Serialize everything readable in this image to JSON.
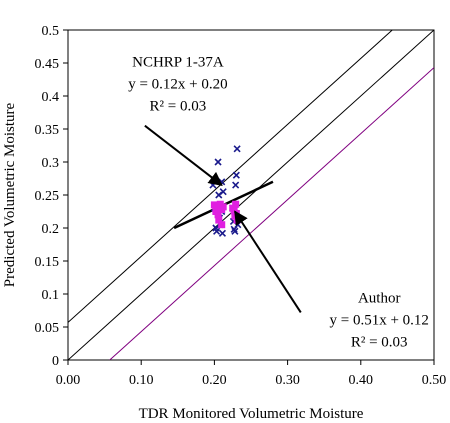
{
  "chart_data": {
    "type": "scatter",
    "title": "",
    "xlabel": "TDR Monitored Volumetric Moisture",
    "ylabel": "Predicted Volumetric Moisture",
    "xlim": [
      0,
      0.5
    ],
    "ylim": [
      0,
      0.5
    ],
    "x_ticks": [
      "0.00",
      "0.10",
      "0.20",
      "0.30",
      "0.40",
      "0.50"
    ],
    "y_ticks": [
      "0",
      "0.05",
      "0.1",
      "0.15",
      "0.2",
      "0.25",
      "0.3",
      "0.35",
      "0.4",
      "0.45",
      "0.5"
    ],
    "grid": false,
    "legend": "none",
    "series": [
      {
        "marker": "x",
        "color": "#1a1a8c",
        "points": [
          [
            0.198,
            0.265
          ],
          [
            0.2,
            0.23
          ],
          [
            0.202,
            0.2
          ],
          [
            0.203,
            0.195
          ],
          [
            0.205,
            0.3
          ],
          [
            0.206,
            0.25
          ],
          [
            0.207,
            0.215
          ],
          [
            0.208,
            0.205
          ],
          [
            0.21,
            0.27
          ],
          [
            0.21,
            0.225
          ],
          [
            0.211,
            0.192
          ],
          [
            0.212,
            0.255
          ],
          [
            0.225,
            0.23
          ],
          [
            0.226,
            0.21
          ],
          [
            0.227,
            0.198
          ],
          [
            0.228,
            0.195
          ],
          [
            0.229,
            0.265
          ],
          [
            0.23,
            0.28
          ],
          [
            0.231,
            0.32
          ],
          [
            0.232,
            0.205
          ]
        ]
      },
      {
        "marker": "square",
        "color": "#e020e0",
        "points": [
          [
            0.2,
            0.235
          ],
          [
            0.202,
            0.225
          ],
          [
            0.204,
            0.232
          ],
          [
            0.205,
            0.22
          ],
          [
            0.206,
            0.212
          ],
          [
            0.208,
            0.236
          ],
          [
            0.21,
            0.228
          ],
          [
            0.21,
            0.205
          ],
          [
            0.212,
            0.232
          ],
          [
            0.225,
            0.23
          ],
          [
            0.227,
            0.226
          ],
          [
            0.228,
            0.218
          ],
          [
            0.229,
            0.236
          ],
          [
            0.23,
            0.222
          ],
          [
            0.231,
            0.212
          ]
        ]
      }
    ],
    "reference_lines": [
      {
        "x1": 0,
        "y1": 0,
        "x2": 0.5,
        "y2": 0.5,
        "color": "#000000"
      },
      {
        "x1": 0,
        "y1": 0.057,
        "x2": 0.443,
        "y2": 0.5,
        "color": "#000000"
      },
      {
        "x1": 0.057,
        "y1": 0,
        "x2": 0.5,
        "y2": 0.443,
        "color": "#800080"
      }
    ],
    "trend_lines": [
      {
        "x1": 0.145,
        "y1": 0.2,
        "x2": 0.28,
        "y2": 0.27,
        "color": "#000000"
      }
    ],
    "annotations": [
      {
        "name": "nchrp",
        "lines": [
          "NCHRP 1-37A",
          "y = 0.12x + 0.20",
          "R² = 0.03"
        ],
        "text_x": 0.075,
        "text_y": 0.445,
        "arrow_from": [
          0.105,
          0.355
        ],
        "arrow_to": [
          0.21,
          0.265
        ]
      },
      {
        "name": "author",
        "lines": [
          "Author",
          "y = 0.51x + 0.12",
          "R² = 0.03"
        ],
        "text_x": 0.35,
        "text_y": 0.087,
        "arrow_from": [
          0.318,
          0.072
        ],
        "arrow_to": [
          0.228,
          0.225
        ]
      }
    ]
  }
}
